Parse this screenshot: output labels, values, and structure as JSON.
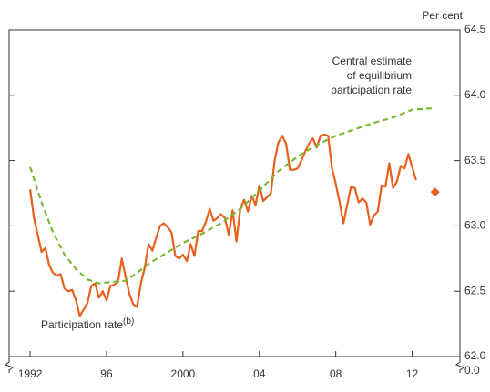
{
  "chart_data": {
    "type": "line",
    "unit_label": "Per cent",
    "xlim": [
      1990.9,
      2014.5
    ],
    "xticks": [
      1992,
      {
        "value": 1996,
        "label": "96"
      },
      2000,
      {
        "value": 2004,
        "label": "04"
      },
      {
        "value": 2008,
        "label": "08"
      },
      {
        "value": 2012,
        "label": "12"
      }
    ],
    "ylim": [
      62,
      64.5
    ],
    "yticks": [
      {
        "value": 62,
        "label": "62.0"
      },
      62.5,
      {
        "value": 63,
        "label": "63.0"
      },
      63.5,
      {
        "value": 64,
        "label": "64.0"
      },
      64.5
    ],
    "y_break_label": "0.0",
    "series": [
      {
        "name": "Participation rate",
        "name_note": "(b)",
        "color": "#e8601c",
        "style": "solid",
        "x": [
          1992,
          1992.2,
          1992.4,
          1992.6,
          1992.8,
          1993,
          1993.2,
          1993.4,
          1993.6,
          1993.8,
          1994,
          1994.2,
          1994.4,
          1994.6,
          1994.8,
          1995,
          1995.2,
          1995.4,
          1995.6,
          1995.8,
          1996,
          1996.2,
          1996.4,
          1996.6,
          1996.8,
          1997,
          1997.2,
          1997.4,
          1997.6,
          1997.8,
          1998,
          1998.2,
          1998.4,
          1998.6,
          1998.8,
          1999,
          1999.2,
          1999.4,
          1999.6,
          1999.8,
          2000,
          2000.2,
          2000.4,
          2000.6,
          2000.8,
          2001,
          2001.2,
          2001.4,
          2001.6,
          2001.8,
          2002,
          2002.2,
          2002.4,
          2002.6,
          2002.8,
          2003,
          2003.2,
          2003.4,
          2003.6,
          2003.8,
          2004,
          2004.2,
          2004.4,
          2004.6,
          2004.8,
          2005,
          2005.2,
          2005.4,
          2005.6,
          2005.8,
          2006,
          2006.2,
          2006.4,
          2006.6,
          2006.8,
          2007,
          2007.2,
          2007.4,
          2007.6,
          2007.8,
          2008,
          2008.2,
          2008.4,
          2008.6,
          2008.8,
          2009,
          2009.2,
          2009.4,
          2009.6,
          2009.8,
          2010,
          2010.2,
          2010.4,
          2010.6,
          2010.8,
          2011,
          2011.2,
          2011.4,
          2011.6,
          2011.8,
          2012,
          2012.2
        ],
        "values": [
          63.28,
          63.06,
          62.93,
          62.8,
          62.83,
          62.7,
          62.64,
          62.62,
          62.63,
          62.52,
          62.5,
          62.51,
          62.43,
          62.31,
          62.36,
          62.41,
          62.54,
          62.56,
          62.45,
          62.5,
          62.43,
          62.54,
          62.55,
          62.57,
          62.75,
          62.61,
          62.48,
          62.4,
          62.38,
          62.56,
          62.68,
          62.86,
          62.81,
          62.91,
          63.0,
          63.02,
          62.99,
          62.95,
          62.77,
          62.75,
          62.78,
          62.73,
          62.86,
          62.77,
          62.96,
          62.96,
          63.03,
          63.13,
          63.04,
          63.06,
          63.09,
          63.06,
          62.93,
          63.12,
          62.88,
          63.13,
          63.2,
          63.11,
          63.23,
          63.16,
          63.31,
          63.19,
          63.22,
          63.25,
          63.5,
          63.64,
          63.69,
          63.63,
          63.43,
          63.43,
          63.44,
          63.5,
          63.57,
          63.63,
          63.67,
          63.6,
          63.69,
          63.7,
          63.69,
          63.44,
          63.32,
          63.18,
          63.02,
          63.16,
          63.3,
          63.29,
          63.18,
          63.21,
          63.18,
          63.01,
          63.08,
          63.11,
          63.31,
          63.3,
          63.48,
          63.29,
          63.34,
          63.46,
          63.44,
          63.55,
          63.45,
          63.35
        ]
      },
      {
        "label_lines": [
          "Central estimate",
          "of equilibrium",
          "participation rate"
        ],
        "color": "#7ab833",
        "style": "dashed",
        "x": [
          1992,
          1992.6,
          1993.2,
          1993.8,
          1994.4,
          1995,
          1995.6,
          1996.2,
          1997,
          1997.6,
          1998.2,
          1999,
          2000,
          2001,
          2002,
          2003,
          2004,
          2005,
          2006,
          2007,
          2008,
          2009,
          2010,
          2011,
          2012,
          2013,
          2013.2
        ],
        "values": [
          63.45,
          63.18,
          62.95,
          62.78,
          62.67,
          62.59,
          62.56,
          62.57,
          62.58,
          62.64,
          62.71,
          62.78,
          62.87,
          62.94,
          63.02,
          63.13,
          63.27,
          63.42,
          63.53,
          63.62,
          63.69,
          63.74,
          63.79,
          63.83,
          63.89,
          63.9,
          63.9
        ]
      },
      {
        "color": "#e8601c",
        "style": "diamond",
        "x": [
          2013.2
        ],
        "values": [
          63.26
        ]
      }
    ]
  }
}
